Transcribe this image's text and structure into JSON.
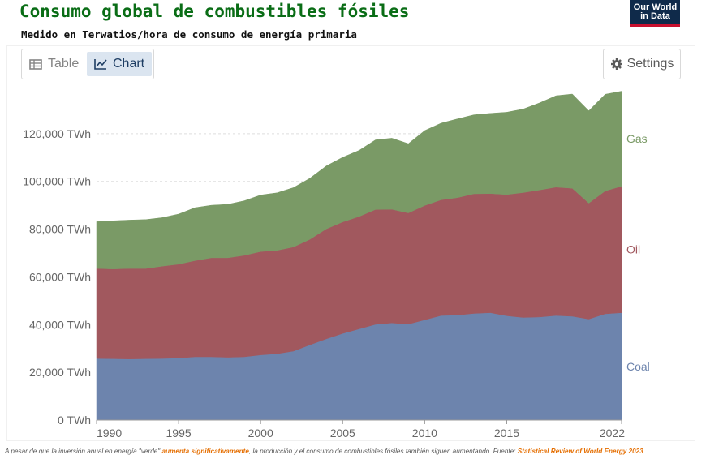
{
  "header": {
    "title": "Consumo global de combustibles fósiles",
    "subtitle": "Medido en Terwatios/hora de consumo de energía primaria",
    "logo_line1": "Our World",
    "logo_line2": "in Data"
  },
  "tabs": {
    "table_label": "Table",
    "chart_label": "Chart",
    "active": "Chart"
  },
  "settings_label": "Settings",
  "footer": {
    "prefix": "A pesar de que la inversión anual en energía \"verde\" ",
    "highlight": "aumenta significativamente",
    "middle": ", la producción y el consumo de combustibles fósiles también siguen aumentando. Fuente: ",
    "source": "Statistical Review of World Energy 2023",
    "suffix": "."
  },
  "chart_data": {
    "type": "area",
    "stacked": true,
    "unit": "TWh",
    "x": [
      1990,
      1991,
      1992,
      1993,
      1994,
      1995,
      1996,
      1997,
      1998,
      1999,
      2000,
      2001,
      2002,
      2003,
      2004,
      2005,
      2006,
      2007,
      2008,
      2009,
      2010,
      2011,
      2012,
      2013,
      2014,
      2015,
      2016,
      2017,
      2018,
      2019,
      2020,
      2021,
      2022
    ],
    "xticks": [
      "1990",
      "1995",
      "2000",
      "2005",
      "2010",
      "2015",
      "2022"
    ],
    "xtick_values": [
      1990,
      1995,
      2000,
      2005,
      2010,
      2015,
      2022
    ],
    "yticks": [
      "0 TWh",
      "20,000 TWh",
      "40,000 TWh",
      "60,000 TWh",
      "80,000 TWh",
      "100,000 TWh",
      "120,000 TWh"
    ],
    "ytick_values": [
      0,
      20000,
      40000,
      60000,
      80000,
      100000,
      120000
    ],
    "ylim": [
      0,
      140000
    ],
    "grid": true,
    "series": [
      {
        "name": "Coal",
        "color": "#6d84ad",
        "values": [
          25800,
          25700,
          25600,
          25700,
          25800,
          26000,
          26500,
          26500,
          26300,
          26500,
          27300,
          27800,
          28900,
          31500,
          34000,
          36300,
          38200,
          40100,
          40700,
          40200,
          42000,
          43800,
          44000,
          44700,
          45000,
          43700,
          43000,
          43200,
          43800,
          43500,
          42300,
          44500,
          45000
        ]
      },
      {
        "name": "Oil",
        "color": "#a1585e",
        "values": [
          37700,
          37600,
          37900,
          37800,
          38700,
          39300,
          40300,
          41500,
          41700,
          42500,
          43300,
          43300,
          43600,
          44200,
          46100,
          46700,
          47100,
          48100,
          47600,
          46600,
          47900,
          48500,
          49200,
          50100,
          49900,
          50800,
          52300,
          53200,
          53800,
          53600,
          48600,
          51500,
          53000
        ]
      },
      {
        "name": "Gas",
        "color": "#7a9a66",
        "values": [
          19700,
          20200,
          20300,
          20500,
          20300,
          21000,
          22200,
          22000,
          22400,
          22900,
          23700,
          24100,
          24900,
          25600,
          26400,
          27100,
          27700,
          29200,
          29800,
          29000,
          31400,
          32100,
          33000,
          33100,
          33600,
          34500,
          35000,
          36500,
          38300,
          39500,
          38700,
          40500,
          39800
        ]
      }
    ]
  }
}
